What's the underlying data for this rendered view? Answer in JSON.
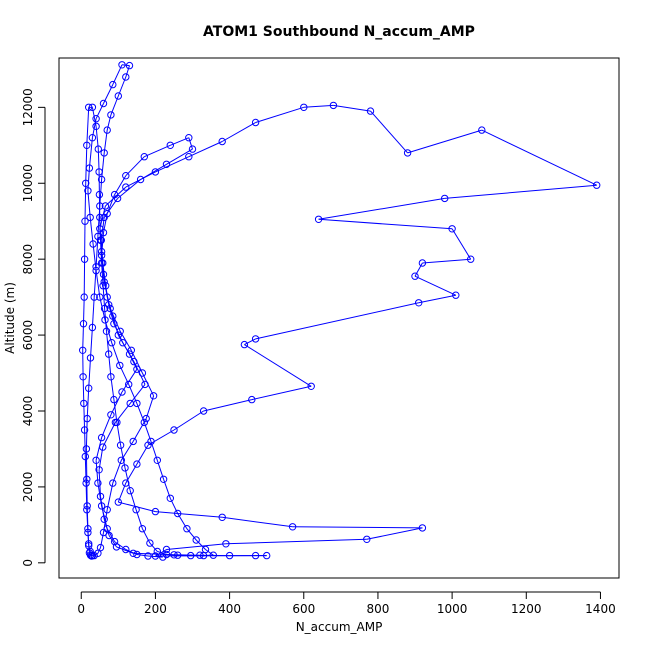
{
  "chart_data": {
    "type": "line",
    "title": "ATOM1 Southbound N_accum_AMP",
    "xlabel": "N_accum_AMP",
    "ylabel": "Altitude (m)",
    "xlim": [
      -60,
      1450
    ],
    "ylim": [
      -400,
      13300
    ],
    "x_ticks": [
      0,
      200,
      400,
      600,
      800,
      1000,
      1200,
      1400
    ],
    "y_ticks": [
      0,
      2000,
      4000,
      6000,
      8000,
      10000,
      12000
    ],
    "x_tick_labels": [
      "0",
      "200",
      "400",
      "600",
      "800",
      "1000",
      "1200",
      "1400"
    ],
    "y_tick_labels": [
      "0",
      "2000",
      "4000",
      "6000",
      "8000",
      "10000",
      "12000"
    ],
    "marker": "open-circle",
    "connected": true,
    "grid": false,
    "legend": "none",
    "color": "#0000ff",
    "series": [
      {
        "points": [
          [
            220,
            150
          ],
          [
            180,
            180
          ],
          [
            150,
            220
          ],
          [
            120,
            350
          ],
          [
            90,
            560
          ],
          [
            70,
            900
          ],
          [
            55,
            1500
          ],
          [
            45,
            2100
          ],
          [
            40,
            2700
          ],
          [
            55,
            3300
          ],
          [
            80,
            3900
          ],
          [
            110,
            4500
          ],
          [
            150,
            5100
          ],
          [
            130,
            5500
          ],
          [
            100,
            6000
          ],
          [
            85,
            6500
          ],
          [
            70,
            7000
          ],
          [
            60,
            7600
          ],
          [
            55,
            8200
          ],
          [
            50,
            8800
          ],
          [
            65,
            9400
          ],
          [
            120,
            9900
          ],
          [
            200,
            10300
          ],
          [
            290,
            10700
          ],
          [
            380,
            11100
          ],
          [
            470,
            11600
          ],
          [
            600,
            12000
          ],
          [
            680,
            12050
          ],
          [
            780,
            11900
          ],
          [
            880,
            10800
          ],
          [
            1080,
            11400
          ],
          [
            1390,
            9950
          ],
          [
            980,
            9600
          ],
          [
            640,
            9050
          ],
          [
            1000,
            8800
          ],
          [
            1050,
            8000
          ],
          [
            920,
            7900
          ],
          [
            900,
            7550
          ],
          [
            1010,
            7050
          ],
          [
            910,
            6850
          ],
          [
            470,
            5900
          ],
          [
            440,
            5750
          ],
          [
            620,
            4650
          ],
          [
            460,
            4300
          ],
          [
            330,
            4000
          ],
          [
            250,
            3500
          ],
          [
            180,
            3100
          ],
          [
            150,
            2600
          ],
          [
            120,
            2100
          ],
          [
            100,
            1600
          ],
          [
            200,
            1350
          ],
          [
            380,
            1200
          ],
          [
            570,
            950
          ],
          [
            920,
            920
          ],
          [
            770,
            620
          ],
          [
            390,
            500
          ],
          [
            230,
            350
          ],
          [
            200,
            180
          ],
          [
            500,
            190
          ],
          [
            470,
            190
          ],
          [
            400,
            190
          ],
          [
            320,
            200
          ],
          [
            250,
            210
          ],
          [
            140,
            250
          ],
          [
            95,
            420
          ],
          [
            75,
            720
          ],
          [
            62,
            1150
          ],
          [
            52,
            1750
          ],
          [
            48,
            2450
          ],
          [
            58,
            3050
          ],
          [
            92,
            3700
          ],
          [
            132,
            4200
          ],
          [
            172,
            4700
          ],
          [
            142,
            5300
          ],
          [
            112,
            5800
          ],
          [
            88,
            6300
          ],
          [
            74,
            6800
          ],
          [
            66,
            7300
          ],
          [
            58,
            7900
          ],
          [
            54,
            8500
          ],
          [
            62,
            9100
          ],
          [
            98,
            9600
          ],
          [
            160,
            10100
          ],
          [
            230,
            10500
          ],
          [
            300,
            10900
          ],
          [
            290,
            11200
          ],
          [
            240,
            11000
          ],
          [
            170,
            10700
          ],
          [
            120,
            10200
          ],
          [
            90,
            9700
          ],
          [
            70,
            9200
          ],
          [
            60,
            8700
          ],
          [
            55,
            8100
          ],
          [
            62,
            7400
          ],
          [
            78,
            6700
          ],
          [
            105,
            6100
          ],
          [
            135,
            5600
          ],
          [
            165,
            5000
          ],
          [
            195,
            4400
          ],
          [
            175,
            3800
          ],
          [
            140,
            3200
          ],
          [
            108,
            2700
          ],
          [
            85,
            2100
          ],
          [
            70,
            1400
          ],
          [
            60,
            800
          ],
          [
            52,
            400
          ],
          [
            45,
            250
          ],
          [
            35,
            190
          ],
          [
            28,
            180
          ],
          [
            25,
            200
          ],
          [
            22,
            260
          ],
          [
            20,
            500
          ],
          [
            18,
            900
          ],
          [
            16,
            1500
          ],
          [
            15,
            2200
          ],
          [
            14,
            3000
          ],
          [
            16,
            3800
          ],
          [
            20,
            4600
          ],
          [
            25,
            5400
          ],
          [
            30,
            6200
          ],
          [
            35,
            7000
          ],
          [
            40,
            7800
          ],
          [
            45,
            8600
          ],
          [
            50,
            9400
          ],
          [
            55,
            10100
          ],
          [
            62,
            10800
          ],
          [
            70,
            11400
          ],
          [
            80,
            11800
          ],
          [
            100,
            12300
          ],
          [
            120,
            12800
          ],
          [
            130,
            13100
          ],
          [
            110,
            13120
          ],
          [
            85,
            12600
          ],
          [
            60,
            12100
          ],
          [
            40,
            11700
          ],
          [
            30,
            11200
          ],
          [
            22,
            10400
          ],
          [
            18,
            9800
          ],
          [
            24,
            9100
          ],
          [
            32,
            8400
          ],
          [
            40,
            7700
          ],
          [
            50,
            7000
          ],
          [
            64,
            6400
          ],
          [
            82,
            5800
          ],
          [
            104,
            5200
          ],
          [
            128,
            4700
          ],
          [
            150,
            4200
          ],
          [
            170,
            3700
          ],
          [
            188,
            3200
          ],
          [
            205,
            2700
          ],
          [
            222,
            2200
          ],
          [
            240,
            1700
          ],
          [
            260,
            1300
          ],
          [
            285,
            900
          ],
          [
            310,
            600
          ],
          [
            335,
            350
          ],
          [
            356,
            200
          ],
          [
            330,
            190
          ],
          [
            295,
            190
          ],
          [
            260,
            200
          ],
          [
            230,
            220
          ],
          [
            205,
            300
          ],
          [
            185,
            520
          ],
          [
            165,
            900
          ],
          [
            148,
            1400
          ],
          [
            132,
            1900
          ],
          [
            118,
            2500
          ],
          [
            106,
            3100
          ],
          [
            96,
            3700
          ],
          [
            88,
            4300
          ],
          [
            80,
            4900
          ],
          [
            74,
            5500
          ],
          [
            68,
            6100
          ],
          [
            63,
            6700
          ],
          [
            59,
            7300
          ],
          [
            55,
            7900
          ],
          [
            52,
            8500
          ],
          [
            50,
            9100
          ],
          [
            49,
            9700
          ],
          [
            48,
            10300
          ],
          [
            46,
            10900
          ],
          [
            40,
            11500
          ],
          [
            30,
            12000
          ],
          [
            20,
            12000
          ],
          [
            15,
            11000
          ],
          [
            12,
            10000
          ],
          [
            10,
            9000
          ],
          [
            9,
            8000
          ],
          [
            8,
            7000
          ],
          [
            6,
            6300
          ],
          [
            4,
            5600
          ],
          [
            5,
            4900
          ],
          [
            7,
            4200
          ],
          [
            9,
            3500
          ],
          [
            11,
            2800
          ],
          [
            13,
            2100
          ],
          [
            15,
            1400
          ],
          [
            18,
            800
          ],
          [
            20,
            450
          ],
          [
            24,
            300
          ],
          [
            30,
            190
          ]
        ]
      }
    ]
  }
}
